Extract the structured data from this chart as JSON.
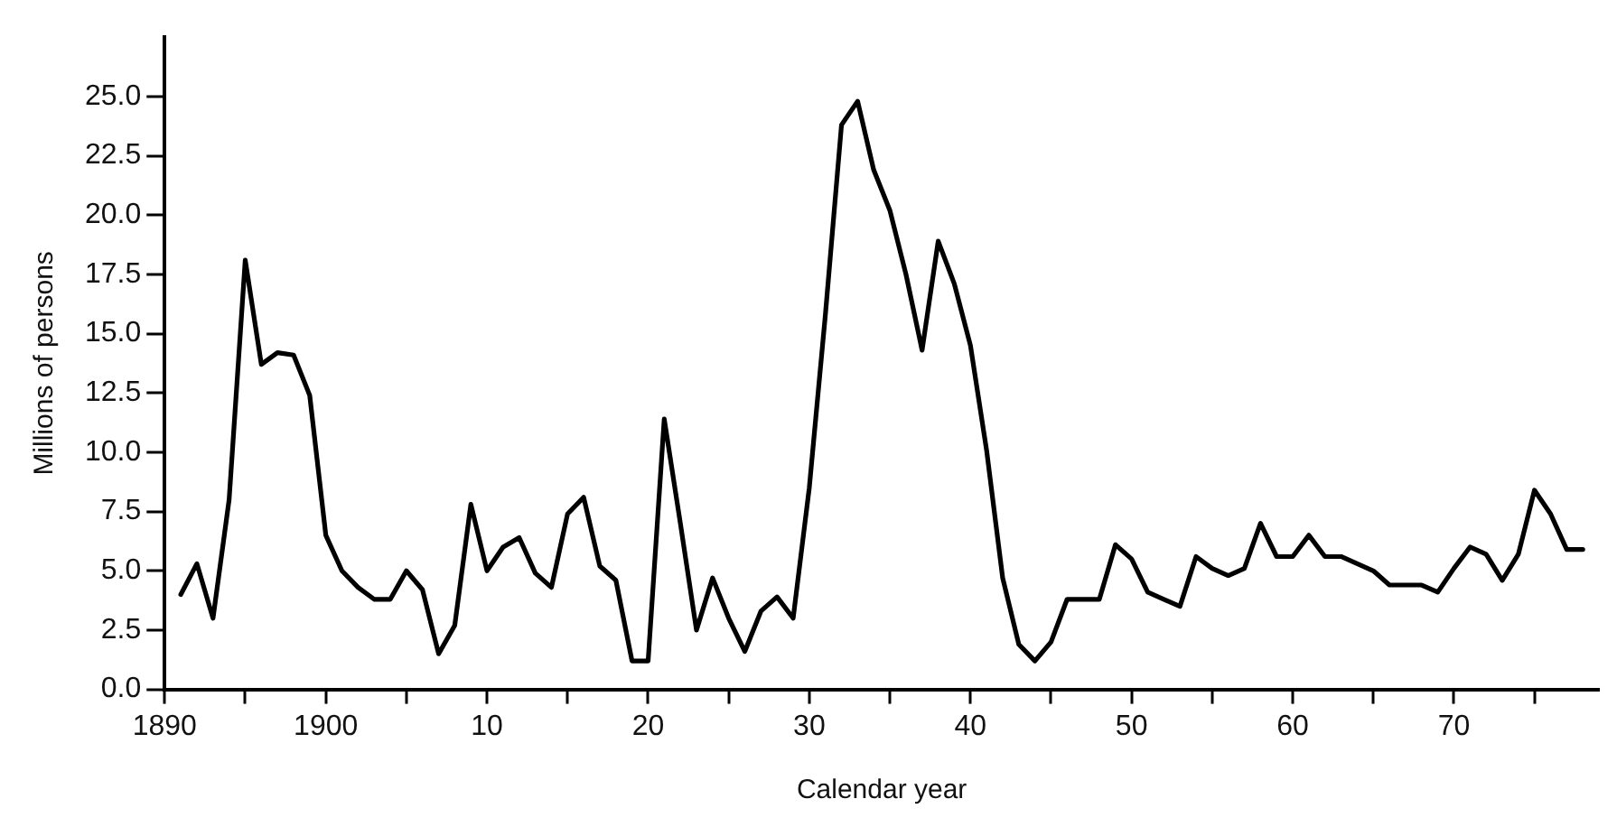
{
  "chart_data": {
    "type": "line",
    "xlabel": "Calendar year",
    "ylabel": "Millions of persons",
    "x": [
      1891,
      1892,
      1893,
      1894,
      1895,
      1896,
      1897,
      1898,
      1899,
      1900,
      1901,
      1902,
      1903,
      1904,
      1905,
      1906,
      1907,
      1908,
      1909,
      1910,
      1911,
      1912,
      1913,
      1914,
      1915,
      1916,
      1917,
      1918,
      1919,
      1920,
      1921,
      1922,
      1923,
      1924,
      1925,
      1926,
      1927,
      1928,
      1929,
      1930,
      1931,
      1932,
      1933,
      1934,
      1935,
      1936,
      1937,
      1938,
      1939,
      1940,
      1941,
      1942,
      1943,
      1944,
      1945,
      1946,
      1947,
      1948,
      1949,
      1950,
      1951,
      1952,
      1953,
      1954,
      1955,
      1956,
      1957,
      1958,
      1959,
      1960,
      1961,
      1962,
      1963,
      1964,
      1965,
      1966,
      1967,
      1968,
      1969,
      1970,
      1971,
      1972,
      1973,
      1974,
      1975,
      1976,
      1977,
      1978
    ],
    "series": [
      {
        "color": "#000000",
        "values": [
          4.0,
          5.3,
          3.0,
          8.0,
          18.1,
          13.7,
          14.2,
          14.1,
          12.4,
          6.5,
          5.0,
          4.3,
          3.8,
          3.8,
          5.0,
          4.2,
          1.5,
          2.7,
          7.8,
          5.0,
          6.0,
          6.4,
          4.9,
          4.3,
          7.4,
          8.1,
          5.2,
          4.6,
          1.2,
          1.2,
          11.4,
          7.0,
          2.5,
          4.7,
          3.0,
          1.6,
          3.3,
          3.9,
          3.0,
          8.5,
          15.8,
          23.8,
          24.8,
          21.9,
          20.2,
          17.5,
          14.3,
          18.9,
          17.1,
          14.5,
          10.1,
          4.7,
          1.9,
          1.2,
          2.0,
          3.8,
          3.8,
          3.8,
          6.1,
          5.5,
          4.1,
          3.8,
          3.5,
          5.6,
          5.1,
          4.8,
          5.1,
          7.0,
          5.6,
          5.6,
          6.5,
          5.6,
          5.6,
          5.3,
          5.0,
          4.4,
          4.4,
          4.4,
          4.1,
          5.1,
          6.0,
          5.7,
          4.6,
          5.7,
          8.4,
          7.4,
          5.9,
          5.9
        ]
      }
    ],
    "xlim": [
      1890,
      1979
    ],
    "xticks": [
      1890,
      {
        "value": 1895,
        "label": null
      },
      1900,
      {
        "value": 1905,
        "label": null
      },
      {
        "value": 1910,
        "label": "10"
      },
      {
        "value": 1915,
        "label": null
      },
      {
        "value": 1920,
        "label": "20"
      },
      {
        "value": 1925,
        "label": null
      },
      {
        "value": 1930,
        "label": "30"
      },
      {
        "value": 1935,
        "label": null
      },
      {
        "value": 1940,
        "label": "40"
      },
      {
        "value": 1945,
        "label": null
      },
      {
        "value": 1950,
        "label": "50"
      },
      {
        "value": 1955,
        "label": null
      },
      {
        "value": 1960,
        "label": "60"
      },
      {
        "value": 1965,
        "label": null
      },
      {
        "value": 1970,
        "label": "70"
      },
      {
        "value": 1975,
        "label": null
      }
    ],
    "ylim": [
      0,
      27.5
    ],
    "yticks": [
      {
        "value": 0,
        "label": "0.0"
      },
      {
        "value": 2.5,
        "label": "2.5"
      },
      {
        "value": 5,
        "label": "5.0"
      },
      {
        "value": 7.5,
        "label": "7.5"
      },
      {
        "value": 10,
        "label": "10.0"
      },
      {
        "value": 12.5,
        "label": "12.5"
      },
      {
        "value": 15,
        "label": "15.0"
      },
      {
        "value": 17.5,
        "label": "17.5"
      },
      {
        "value": 20,
        "label": "20.0"
      },
      {
        "value": 22.5,
        "label": "22.5"
      },
      {
        "value": 25,
        "label": "25.0"
      }
    ],
    "grid": false,
    "legend": false,
    "marker": "none",
    "line_style": "solid"
  }
}
